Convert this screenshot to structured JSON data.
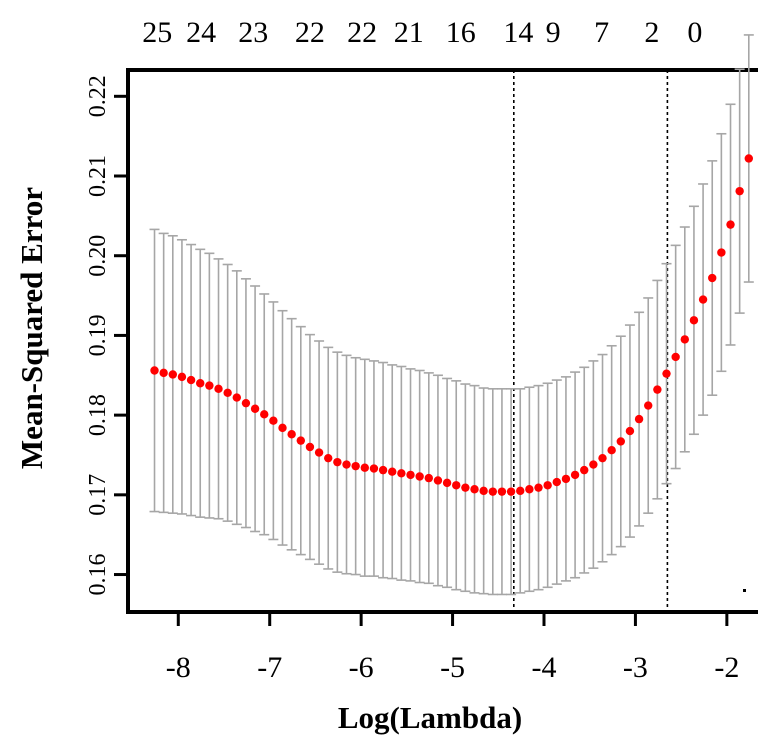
{
  "chart_data": {
    "type": "scatter",
    "title": "",
    "xlabel": "Log(Lambda)",
    "ylabel": "Mean-Squared Error",
    "xlim": [
      -8.55,
      -1.55
    ],
    "ylim": [
      0.1553,
      0.2233
    ],
    "x_ticks": [
      -8,
      -7,
      -6,
      -5,
      -4,
      -3,
      -2
    ],
    "x_tick_labels": [
      "-8",
      "-7",
      "-6",
      "-5",
      "-4",
      "-3",
      "-2"
    ],
    "y_ticks": [
      0.16,
      0.17,
      0.18,
      0.19,
      0.2,
      0.21,
      0.22
    ],
    "y_tick_labels": [
      "0.16",
      "0.17",
      "0.18",
      "0.19",
      "0.20",
      "0.21",
      "0.22"
    ],
    "top_axis": {
      "positions": [
        -8.23,
        -7.75,
        -7.18,
        -6.56,
        -5.99,
        -5.48,
        -4.91,
        -4.28,
        -3.9,
        -3.37,
        -2.82,
        -2.35
      ],
      "labels": [
        "25",
        "24",
        "23",
        "22",
        "22",
        "21",
        "16",
        "14",
        "9",
        "7",
        "2",
        "0"
      ]
    },
    "vlines": [
      -4.33,
      -2.65
    ],
    "grid": false,
    "series": [
      {
        "x": [
          -8.26,
          -8.16,
          -8.06,
          -7.96,
          -7.86,
          -7.76,
          -7.66,
          -7.56,
          -7.46,
          -7.36,
          -7.26,
          -7.16,
          -7.06,
          -6.96,
          -6.86,
          -6.76,
          -6.66,
          -6.56,
          -6.46,
          -6.36,
          -6.26,
          -6.16,
          -6.06,
          -5.96,
          -5.86,
          -5.76,
          -5.66,
          -5.56,
          -5.46,
          -5.36,
          -5.26,
          -5.16,
          -5.06,
          -4.96,
          -4.86,
          -4.76,
          -4.66,
          -4.56,
          -4.46,
          -4.36,
          -4.26,
          -4.16,
          -4.06,
          -3.96,
          -3.86,
          -3.76,
          -3.66,
          -3.56,
          -3.46,
          -3.36,
          -3.26,
          -3.16,
          -3.06,
          -2.96,
          -2.86,
          -2.76,
          -2.66,
          -2.56,
          -2.46,
          -2.36,
          -2.26,
          -2.16,
          -2.06,
          -1.96,
          -1.86,
          -1.76
        ],
        "y": [
          0.1856,
          0.1853,
          0.1851,
          0.1848,
          0.1844,
          0.184,
          0.1837,
          0.1833,
          0.1828,
          0.1822,
          0.1815,
          0.1808,
          0.1801,
          0.1793,
          0.1784,
          0.1776,
          0.1768,
          0.176,
          0.1753,
          0.1746,
          0.1741,
          0.1738,
          0.1736,
          0.1734,
          0.1733,
          0.1731,
          0.1729,
          0.1727,
          0.1725,
          0.1723,
          0.1721,
          0.1718,
          0.1715,
          0.1712,
          0.1709,
          0.1707,
          0.1705,
          0.1704,
          0.1704,
          0.1704,
          0.1705,
          0.1707,
          0.1709,
          0.1712,
          0.1716,
          0.172,
          0.1725,
          0.1731,
          0.1738,
          0.1746,
          0.1756,
          0.1767,
          0.178,
          0.1795,
          0.1812,
          0.1832,
          0.1852,
          0.1873,
          0.1895,
          0.1919,
          0.1945,
          0.1972,
          0.2004,
          0.2039,
          0.2081,
          0.2122
        ],
        "err": [
          0.0177,
          0.0175,
          0.0174,
          0.0172,
          0.017,
          0.0168,
          0.0166,
          0.0163,
          0.0161,
          0.0159,
          0.0156,
          0.0154,
          0.0151,
          0.0149,
          0.0147,
          0.0145,
          0.0143,
          0.0141,
          0.014,
          0.0139,
          0.0138,
          0.0137,
          0.0136,
          0.0136,
          0.0135,
          0.0135,
          0.0134,
          0.0134,
          0.0133,
          0.0133,
          0.0132,
          0.0132,
          0.0131,
          0.0131,
          0.013,
          0.013,
          0.0129,
          0.0129,
          0.0129,
          0.0129,
          0.0128,
          0.0128,
          0.0128,
          0.0128,
          0.0128,
          0.0128,
          0.0129,
          0.0129,
          0.013,
          0.013,
          0.0131,
          0.0132,
          0.0133,
          0.0134,
          0.0135,
          0.0137,
          0.0138,
          0.014,
          0.0141,
          0.0143,
          0.0145,
          0.0147,
          0.0149,
          0.0151,
          0.0153,
          0.0155
        ]
      }
    ],
    "colors": {
      "points": "#ff0000",
      "error_bars": "#a6a6a6",
      "axes": "#000000"
    }
  }
}
